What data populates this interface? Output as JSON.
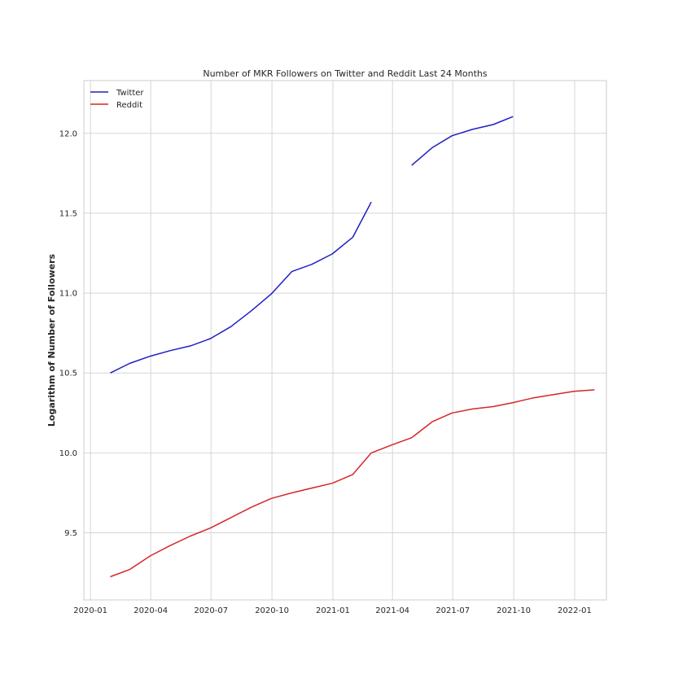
{
  "chart_data": {
    "type": "line",
    "title": "Number of MKR Followers on Twitter and Reddit Last 24 Months",
    "xlabel": "",
    "ylabel": "Logarithm of Number of Followers",
    "x_ticks": [
      "2020-01",
      "2020-04",
      "2020-07",
      "2020-10",
      "2021-01",
      "2021-04",
      "2021-07",
      "2021-10",
      "2022-01"
    ],
    "y_ticks": [
      "9.5",
      "10.0",
      "10.5",
      "11.0",
      "11.5",
      "12.0"
    ],
    "xlim": [
      "2019-12-22",
      "2022-02-18"
    ],
    "ylim": [
      9.08,
      12.33
    ],
    "grid": true,
    "legend_position": "top-left",
    "series": [
      {
        "name": "Twitter",
        "color": "#1f1fc4",
        "points": [
          [
            "2020-01-31",
            10.5
          ],
          [
            "2020-02-29",
            10.56
          ],
          [
            "2020-03-31",
            10.605
          ],
          [
            "2020-04-30",
            10.64
          ],
          [
            "2020-05-31",
            10.67
          ],
          [
            "2020-06-30",
            10.715
          ],
          [
            "2020-07-31",
            10.79
          ],
          [
            "2020-08-31",
            10.89
          ],
          [
            "2020-09-30",
            10.995
          ],
          [
            "2020-10-31",
            11.135
          ],
          [
            "2020-11-30",
            11.18
          ],
          [
            "2020-12-31",
            11.245
          ],
          [
            "2021-01-31",
            11.35
          ],
          [
            "2021-02-28",
            11.57
          ],
          [
            "2021-03-31",
            null
          ],
          [
            "2021-04-30",
            11.8
          ],
          [
            "2021-05-31",
            11.91
          ],
          [
            "2021-06-30",
            11.985
          ],
          [
            "2021-07-31",
            12.025
          ],
          [
            "2021-08-31",
            12.055
          ],
          [
            "2021-09-30",
            12.105
          ]
        ]
      },
      {
        "name": "Reddit",
        "color": "#d62728",
        "points": [
          [
            "2020-01-31",
            9.225
          ],
          [
            "2020-02-29",
            9.27
          ],
          [
            "2020-03-31",
            9.355
          ],
          [
            "2020-04-30",
            9.42
          ],
          [
            "2020-05-31",
            9.48
          ],
          [
            "2020-06-30",
            9.53
          ],
          [
            "2020-07-31",
            9.595
          ],
          [
            "2020-08-31",
            9.66
          ],
          [
            "2020-09-30",
            9.715
          ],
          [
            "2020-10-31",
            9.75
          ],
          [
            "2020-11-30",
            9.78
          ],
          [
            "2020-12-31",
            9.81
          ],
          [
            "2021-01-31",
            9.865
          ],
          [
            "2021-02-28",
            10.0
          ],
          [
            "2021-03-31",
            10.05
          ],
          [
            "2021-04-30",
            10.095
          ],
          [
            "2021-05-31",
            10.195
          ],
          [
            "2021-06-30",
            10.25
          ],
          [
            "2021-07-31",
            10.275
          ],
          [
            "2021-08-31",
            10.29
          ],
          [
            "2021-09-30",
            10.315
          ],
          [
            "2021-10-31",
            10.345
          ],
          [
            "2021-11-30",
            10.365
          ],
          [
            "2021-12-31",
            10.385
          ],
          [
            "2022-01-31",
            10.395
          ]
        ]
      }
    ]
  }
}
